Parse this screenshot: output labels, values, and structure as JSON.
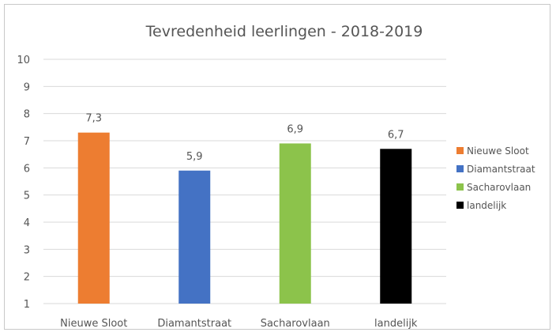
{
  "chart_data": {
    "type": "bar",
    "title": "Tevredenheid leerlingen - 2018-2019",
    "categories": [
      "Nieuwe Sloot",
      "Diamantstraat",
      "Sacharovlaan",
      "landelijk"
    ],
    "values": [
      7.3,
      5.9,
      6.9,
      6.7
    ],
    "value_labels": [
      "7,3",
      "5,9",
      "6,9",
      "6,7"
    ],
    "colors": [
      "#ED7D31",
      "#4472C4",
      "#8CC34B",
      "#000000"
    ],
    "ylim": [
      1,
      10
    ],
    "yticks": [
      "1",
      "2",
      "3",
      "4",
      "5",
      "6",
      "7",
      "8",
      "9",
      "10"
    ],
    "grid": true,
    "legend_position": "right",
    "legend": [
      "Nieuwe Sloot",
      "Diamantstraat",
      "Sacharovlaan",
      "landelijk"
    ]
  }
}
